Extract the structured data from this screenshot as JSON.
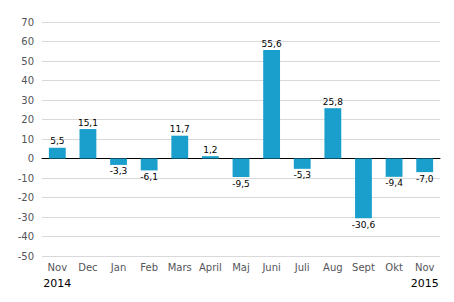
{
  "chart_data": {
    "type": "bar",
    "categories": [
      "Nov",
      "Dec",
      "Jan",
      "Feb",
      "Mars",
      "April",
      "Maj",
      "Juni",
      "Juli",
      "Aug",
      "Sept",
      "Okt",
      "Nov"
    ],
    "values": [
      5.5,
      15.1,
      -3.3,
      -6.1,
      11.7,
      1.2,
      -9.5,
      55.6,
      -5.3,
      25.8,
      -30.6,
      -9.4,
      -7.0
    ],
    "value_labels": [
      "5,5",
      "15,1",
      "-3,3",
      "-6,1",
      "11,7",
      "1,2",
      "-9,5",
      "55,6",
      "-5,3",
      "25,8",
      "-30,6",
      "-9,4",
      "-7,0"
    ],
    "color": "#1a9fcc",
    "ylim": [
      -50,
      70
    ],
    "yticks": [
      -50,
      -40,
      -30,
      -20,
      -10,
      0,
      10,
      20,
      30,
      40,
      50,
      60,
      70
    ],
    "grid": true,
    "data_labels": true,
    "annotations": [
      "2014",
      "2015"
    ]
  }
}
